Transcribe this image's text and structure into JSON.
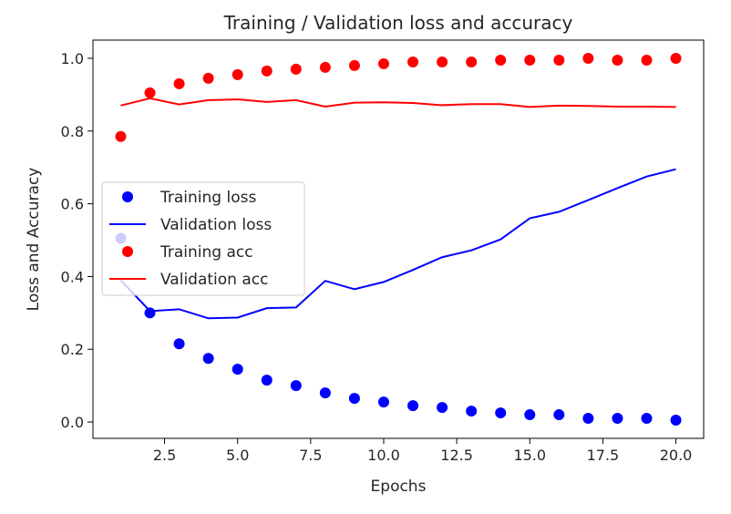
{
  "chart_data": {
    "type": "line",
    "title": "Training / Validation loss and accuracy",
    "xlabel": "Epochs",
    "ylabel": "Loss and Accuracy",
    "xlim": [
      0.05,
      20.95
    ],
    "ylim": [
      -0.045,
      1.05
    ],
    "x_ticks": [
      2.5,
      5.0,
      7.5,
      10.0,
      12.5,
      15.0,
      17.5,
      20.0
    ],
    "x_tick_labels": [
      "2.5",
      "5.0",
      "7.5",
      "10.0",
      "12.5",
      "15.0",
      "17.5",
      "20.0"
    ],
    "y_ticks": [
      0.0,
      0.2,
      0.4,
      0.6,
      0.8,
      1.0
    ],
    "y_tick_labels": [
      "0.0",
      "0.2",
      "0.4",
      "0.6",
      "0.8",
      "1.0"
    ],
    "grid": false,
    "legend_position": "center-left",
    "x": [
      1,
      2,
      3,
      4,
      5,
      6,
      7,
      8,
      9,
      10,
      11,
      12,
      13,
      14,
      15,
      16,
      17,
      18,
      19,
      20
    ],
    "series": [
      {
        "name": "Training loss",
        "style": "dots",
        "color": "#0000ff",
        "values": [
          0.505,
          0.3,
          0.215,
          0.175,
          0.145,
          0.115,
          0.1,
          0.08,
          0.065,
          0.055,
          0.045,
          0.04,
          0.03,
          0.025,
          0.02,
          0.02,
          0.01,
          0.01,
          0.01,
          0.005
        ]
      },
      {
        "name": "Validation loss",
        "style": "line",
        "color": "#0000ff",
        "values": [
          0.39,
          0.305,
          0.31,
          0.285,
          0.287,
          0.313,
          0.315,
          0.388,
          0.365,
          0.385,
          0.418,
          0.453,
          0.472,
          0.502,
          0.56,
          0.578,
          0.61,
          0.643,
          0.675,
          0.695
        ]
      },
      {
        "name": "Training acc",
        "style": "dots",
        "color": "#ff0000",
        "values": [
          0.785,
          0.905,
          0.93,
          0.945,
          0.955,
          0.965,
          0.97,
          0.975,
          0.98,
          0.985,
          0.99,
          0.99,
          0.99,
          0.995,
          0.995,
          0.995,
          1.0,
          0.995,
          0.995,
          1.0
        ]
      },
      {
        "name": "Validation acc",
        "style": "line",
        "color": "#ff0000",
        "values": [
          0.87,
          0.89,
          0.873,
          0.885,
          0.887,
          0.88,
          0.885,
          0.867,
          0.878,
          0.879,
          0.877,
          0.871,
          0.874,
          0.874,
          0.866,
          0.87,
          0.869,
          0.867,
          0.867,
          0.866
        ]
      }
    ]
  }
}
